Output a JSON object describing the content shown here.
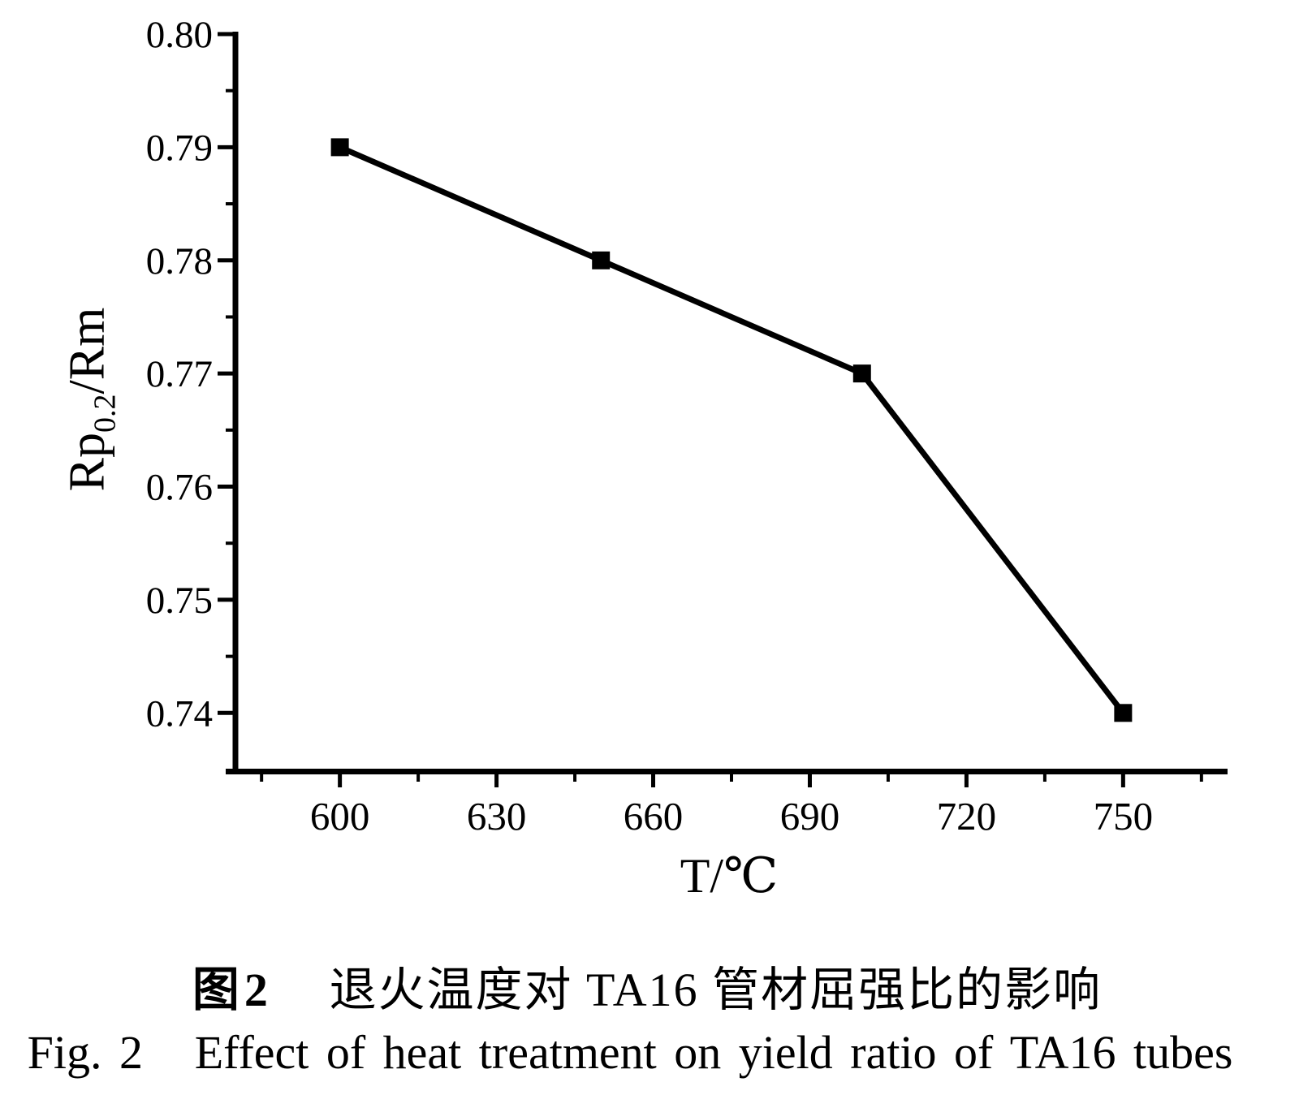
{
  "page": {
    "background_color": "#ffffff",
    "foreground_color": "#000000"
  },
  "chart_data": {
    "type": "line",
    "title": "",
    "xlabel": "T/℃",
    "ylabel": "Rp0.2/Rm",
    "ylabel_parts": {
      "pre": "Rp",
      "sub": "0.2",
      "post": "/Rm"
    },
    "x": [
      600,
      650,
      700,
      750
    ],
    "series": [
      {
        "name": "Rp0.2/Rm",
        "values": [
          0.79,
          0.78,
          0.77,
          0.74
        ]
      }
    ],
    "xlim": [
      580,
      770
    ],
    "ylim": [
      0.735,
      0.8
    ],
    "x_major_ticks": [
      {
        "value": 600,
        "label": "600"
      },
      {
        "value": 630,
        "label": "630"
      },
      {
        "value": 660,
        "label": "660"
      },
      {
        "value": 690,
        "label": "690"
      },
      {
        "value": 720,
        "label": "720"
      },
      {
        "value": 750,
        "label": "750"
      }
    ],
    "x_minor_ticks": [
      585,
      615,
      645,
      675,
      705,
      735,
      765
    ],
    "y_major_ticks": [
      {
        "value": 0.8,
        "label": "0.80"
      },
      {
        "value": 0.79,
        "label": "0.79"
      },
      {
        "value": 0.78,
        "label": "0.78"
      },
      {
        "value": 0.77,
        "label": "0.77"
      },
      {
        "value": 0.76,
        "label": "0.76"
      },
      {
        "value": 0.75,
        "label": "0.75"
      },
      {
        "value": 0.74,
        "label": "0.74"
      }
    ],
    "y_minor_ticks": [
      0.795,
      0.785,
      0.775,
      0.765,
      0.755,
      0.745
    ],
    "marker": "filled-square",
    "line_color": "#000000",
    "marker_color": "#000000",
    "grid": false,
    "legend": "none"
  },
  "captions": {
    "zh_label": "图2",
    "zh_text": "退火温度对 TA16 管材屈强比的影响",
    "en_label": "Fig. 2",
    "en_text": "Effect of heat treatment on yield ratio of TA16 tubes"
  }
}
